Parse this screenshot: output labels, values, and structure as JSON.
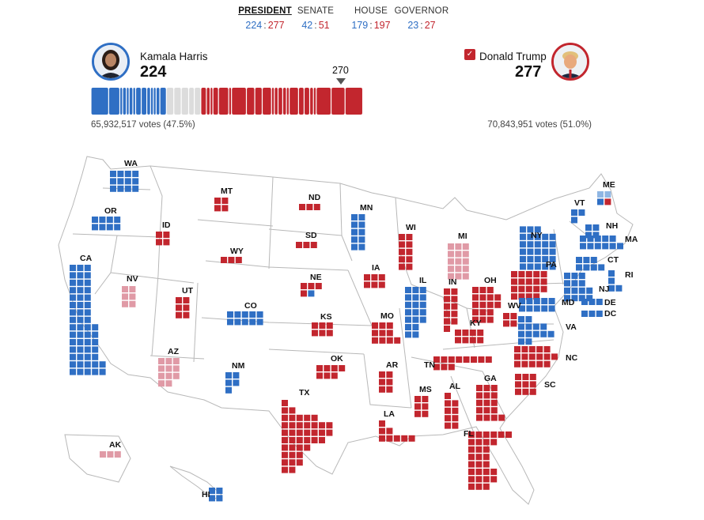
{
  "colors": {
    "dem": "#2f6fc4",
    "rep": "#c2262e",
    "dem_lean": "#8fb6e3",
    "rep_lean": "#e09aa6",
    "pending": "#dcdcdc",
    "border": "#b8b8b8"
  },
  "tabs": [
    {
      "label": "PRESIDENT",
      "dem": "224",
      "rep": "277",
      "active": true
    },
    {
      "label": "SENATE",
      "dem": "42",
      "rep": "51",
      "active": false
    },
    {
      "label": "HOUSE",
      "dem": "179",
      "rep": "197",
      "active": false
    },
    {
      "label": "GOVERNOR",
      "dem": "23",
      "rep": "27",
      "active": false
    }
  ],
  "candidates": {
    "dem": {
      "name": "Kamala Harris",
      "electoral_votes": "224",
      "popular_vote": "65,932,517 votes (47.5%)"
    },
    "rep": {
      "name": "Donald Trump",
      "electoral_votes": "277",
      "popular_vote": "70,843,951 votes (51.0%)",
      "winner_check": "✓"
    }
  },
  "threshold": "270",
  "bar": {
    "dem_segments": [
      19,
      12,
      3,
      4,
      3,
      4,
      3,
      6,
      6,
      4,
      3,
      3,
      4,
      7
    ],
    "pending": 37,
    "rep_segments": [
      6,
      4,
      3,
      6,
      11,
      3,
      16,
      9,
      8,
      10,
      3,
      4,
      5,
      4,
      3,
      10,
      6,
      6,
      4,
      3,
      16,
      15,
      19
    ],
    "total": 538
  },
  "states": [
    {
      "abbr": "WA",
      "ev": 12,
      "winner": "dem"
    },
    {
      "abbr": "OR",
      "ev": 8,
      "winner": "dem"
    },
    {
      "abbr": "CA",
      "ev": 54,
      "winner": "dem"
    },
    {
      "abbr": "ID",
      "ev": 4,
      "winner": "rep"
    },
    {
      "abbr": "NV",
      "ev": 6,
      "winner": "rep_lean"
    },
    {
      "abbr": "MT",
      "ev": 4,
      "winner": "rep"
    },
    {
      "abbr": "WY",
      "ev": 3,
      "winner": "rep"
    },
    {
      "abbr": "UT",
      "ev": 6,
      "winner": "rep"
    },
    {
      "abbr": "AZ",
      "ev": 11,
      "winner": "rep_lean"
    },
    {
      "abbr": "CO",
      "ev": 10,
      "winner": "dem"
    },
    {
      "abbr": "NM",
      "ev": 5,
      "winner": "dem"
    },
    {
      "abbr": "ND",
      "ev": 3,
      "winner": "rep"
    },
    {
      "abbr": "SD",
      "ev": 3,
      "winner": "rep"
    },
    {
      "abbr": "NE",
      "ev": 5,
      "winner": "split"
    },
    {
      "abbr": "KS",
      "ev": 6,
      "winner": "rep"
    },
    {
      "abbr": "OK",
      "ev": 7,
      "winner": "rep"
    },
    {
      "abbr": "TX",
      "ev": 40,
      "winner": "rep"
    },
    {
      "abbr": "MN",
      "ev": 10,
      "winner": "dem"
    },
    {
      "abbr": "IA",
      "ev": 6,
      "winner": "rep"
    },
    {
      "abbr": "MO",
      "ev": 10,
      "winner": "rep"
    },
    {
      "abbr": "AR",
      "ev": 6,
      "winner": "rep"
    },
    {
      "abbr": "LA",
      "ev": 8,
      "winner": "rep"
    },
    {
      "abbr": "WI",
      "ev": 10,
      "winner": "rep"
    },
    {
      "abbr": "IL",
      "ev": 19,
      "winner": "dem"
    },
    {
      "abbr": "MI",
      "ev": 15,
      "winner": "rep_lean"
    },
    {
      "abbr": "IN",
      "ev": 11,
      "winner": "rep"
    },
    {
      "abbr": "OH",
      "ev": 17,
      "winner": "rep"
    },
    {
      "abbr": "KY",
      "ev": 8,
      "winner": "rep"
    },
    {
      "abbr": "TN",
      "ev": 11,
      "winner": "rep"
    },
    {
      "abbr": "MS",
      "ev": 6,
      "winner": "rep"
    },
    {
      "abbr": "AL",
      "ev": 9,
      "winner": "rep"
    },
    {
      "abbr": "GA",
      "ev": 16,
      "winner": "rep"
    },
    {
      "abbr": "FL",
      "ev": 30,
      "winner": "rep"
    },
    {
      "abbr": "SC",
      "ev": 9,
      "winner": "rep"
    },
    {
      "abbr": "NC",
      "ev": 16,
      "winner": "rep"
    },
    {
      "abbr": "VA",
      "ev": 13,
      "winner": "dem"
    },
    {
      "abbr": "WV",
      "ev": 4,
      "winner": "rep"
    },
    {
      "abbr": "PA",
      "ev": 19,
      "winner": "rep"
    },
    {
      "abbr": "NY",
      "ev": 28,
      "winner": "dem"
    },
    {
      "abbr": "VT",
      "ev": 3,
      "winner": "dem"
    },
    {
      "abbr": "NH",
      "ev": 4,
      "winner": "dem"
    },
    {
      "abbr": "ME",
      "ev": 4,
      "winner": "split"
    },
    {
      "abbr": "MA",
      "ev": 11,
      "winner": "dem"
    },
    {
      "abbr": "RI",
      "ev": 4,
      "winner": "dem"
    },
    {
      "abbr": "CT",
      "ev": 7,
      "winner": "dem"
    },
    {
      "abbr": "NJ",
      "ev": 14,
      "winner": "dem"
    },
    {
      "abbr": "DE",
      "ev": 3,
      "winner": "dem"
    },
    {
      "abbr": "MD",
      "ev": 10,
      "winner": "dem"
    },
    {
      "abbr": "DC",
      "ev": 3,
      "winner": "dem"
    },
    {
      "abbr": "AK",
      "ev": 3,
      "winner": "rep_lean"
    },
    {
      "abbr": "HI",
      "ev": 4,
      "winner": "dem"
    }
  ]
}
